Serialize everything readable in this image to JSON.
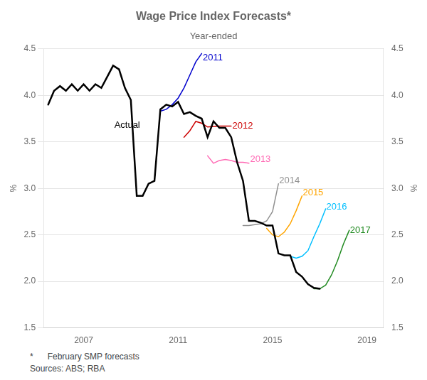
{
  "chart_data": {
    "type": "line",
    "title": "Wage Price Index Forecasts*",
    "subtitle": "Year-ended",
    "ylabel": "%",
    "y2label": "%",
    "footnotes": [
      "*      February SMP forecasts",
      "Sources: ABS; RBA"
    ],
    "xlim": [
      2005.3,
      2019.7
    ],
    "xticks": [
      2007,
      2011,
      2015,
      2019
    ],
    "ylim": [
      1.5,
      4.5
    ],
    "yticks": [
      1.5,
      {
        "value": 2.0,
        "label": "2.0"
      },
      2.5,
      {
        "value": 3.0,
        "label": "3.0"
      },
      3.5,
      {
        "value": 4.0,
        "label": "4.0"
      },
      4.5
    ],
    "y2lim": [
      1.5,
      4.5
    ],
    "y2ticks": [
      1.5,
      {
        "value": 2.0,
        "label": "2.0"
      },
      2.5,
      {
        "value": 3.0,
        "label": "3.0"
      },
      3.5,
      {
        "value": 4.0,
        "label": "4.0"
      },
      4.5
    ],
    "grid": "y",
    "series": [
      {
        "name": "Actual",
        "color": "#000000",
        "x": [
          2005.5,
          2005.75,
          2006.0,
          2006.25,
          2006.5,
          2006.75,
          2007.0,
          2007.25,
          2007.5,
          2007.75,
          2008.0,
          2008.25,
          2008.5,
          2008.75,
          2009.0,
          2009.25,
          2009.5,
          2009.75,
          2010.0,
          2010.25,
          2010.5,
          2010.75,
          2011.0,
          2011.25,
          2011.5,
          2011.75,
          2012.0,
          2012.25,
          2012.5,
          2012.75,
          2013.0,
          2013.25,
          2013.5,
          2013.75,
          2014.0,
          2014.25,
          2014.5,
          2014.75,
          2015.0,
          2015.25,
          2015.5,
          2015.75,
          2016.0,
          2016.25,
          2016.5,
          2016.75,
          2017.0
        ],
        "values": [
          3.9,
          4.05,
          4.1,
          4.05,
          4.12,
          4.05,
          4.12,
          4.05,
          4.12,
          4.08,
          4.2,
          4.32,
          4.28,
          4.08,
          3.95,
          2.92,
          2.92,
          3.05,
          3.08,
          3.85,
          3.9,
          3.88,
          3.93,
          3.8,
          3.82,
          3.78,
          3.75,
          3.55,
          3.72,
          3.65,
          3.65,
          3.55,
          3.28,
          3.08,
          2.65,
          2.65,
          2.63,
          2.6,
          2.6,
          2.3,
          2.28,
          2.28,
          2.1,
          2.05,
          1.97,
          1.93,
          1.92
        ]
      },
      {
        "name": "2011",
        "color": "#0000CD",
        "x": [
          2010.25,
          2010.5,
          2010.75,
          2011.0,
          2011.25,
          2011.5,
          2011.75,
          2012.0
        ],
        "values": [
          3.83,
          3.85,
          3.9,
          3.97,
          4.08,
          4.22,
          4.36,
          4.45
        ]
      },
      {
        "name": "2012",
        "color": "#CC0000",
        "x": [
          2011.25,
          2011.5,
          2011.75,
          2012.0,
          2012.25,
          2012.75,
          2013.0,
          2013.25
        ],
        "values": [
          3.55,
          3.62,
          3.72,
          3.7,
          3.66,
          3.67,
          3.67,
          3.67
        ]
      },
      {
        "name": "2013",
        "color": "#FF69B4",
        "x": [
          2012.25,
          2012.5,
          2012.75,
          2013.0,
          2013.25,
          2013.5,
          2013.75,
          2014.0
        ],
        "values": [
          3.35,
          3.27,
          3.3,
          3.31,
          3.3,
          3.28,
          3.28,
          3.27
        ]
      },
      {
        "name": "2014",
        "color": "#909090",
        "x": [
          2013.75,
          2014.0,
          2014.25,
          2014.5,
          2014.75,
          2015.0,
          2015.25
        ],
        "values": [
          2.6,
          2.6,
          2.61,
          2.62,
          2.65,
          2.75,
          3.05
        ]
      },
      {
        "name": "2015",
        "color": "#FFA500",
        "x": [
          2014.75,
          2015.0,
          2015.25,
          2015.5,
          2015.75,
          2016.0,
          2016.25
        ],
        "values": [
          2.57,
          2.5,
          2.48,
          2.53,
          2.62,
          2.76,
          2.92
        ]
      },
      {
        "name": "2016",
        "color": "#00BFFF",
        "x": [
          2015.75,
          2016.0,
          2016.25,
          2016.5,
          2016.75,
          2017.0,
          2017.25
        ],
        "values": [
          2.27,
          2.25,
          2.27,
          2.33,
          2.48,
          2.62,
          2.78
        ]
      },
      {
        "name": "2017",
        "color": "#228B22",
        "x": [
          2016.75,
          2017.0,
          2017.25,
          2017.5,
          2017.75,
          2018.0,
          2018.25
        ],
        "values": [
          1.92,
          1.92,
          1.96,
          2.07,
          2.22,
          2.4,
          2.55
        ]
      }
    ],
    "annotations": [
      {
        "text": "2011",
        "x": 2012.05,
        "y": 4.4,
        "color": "#0000CD"
      },
      {
        "text": "2012",
        "x": 2013.3,
        "y": 3.67,
        "color": "#CC0000"
      },
      {
        "text": "2013",
        "x": 2014.05,
        "y": 3.31,
        "color": "#FF69B4"
      },
      {
        "text": "2014",
        "x": 2015.28,
        "y": 3.08,
        "color": "#909090"
      },
      {
        "text": "2015",
        "x": 2016.28,
        "y": 2.95,
        "color": "#FFA500"
      },
      {
        "text": "2016",
        "x": 2017.28,
        "y": 2.8,
        "color": "#00BFFF"
      },
      {
        "text": "2017",
        "x": 2018.28,
        "y": 2.55,
        "color": "#228B22"
      },
      {
        "text": "Actual",
        "x": 2008.3,
        "y": 3.68,
        "color": "#000000"
      }
    ]
  }
}
